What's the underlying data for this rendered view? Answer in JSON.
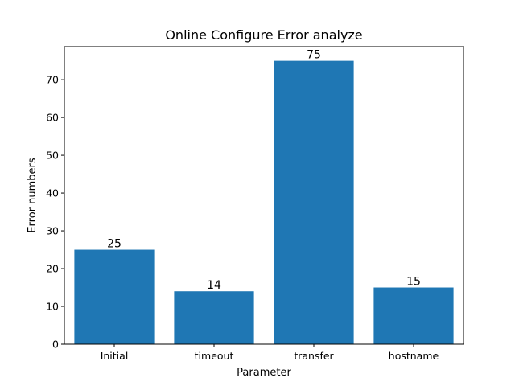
{
  "chart_data": {
    "type": "bar",
    "title": "Online Configure Error analyze",
    "xlabel": "Parameter",
    "ylabel": "Error numbers",
    "categories": [
      "Initial",
      "timeout",
      "transfer",
      "hostname"
    ],
    "values": [
      25,
      14,
      75,
      15
    ],
    "ylim": [
      0,
      78.75
    ],
    "yticks": [
      0,
      10,
      20,
      30,
      40,
      50,
      60,
      70
    ],
    "grid": false,
    "bar_color": "#1f77b4"
  }
}
